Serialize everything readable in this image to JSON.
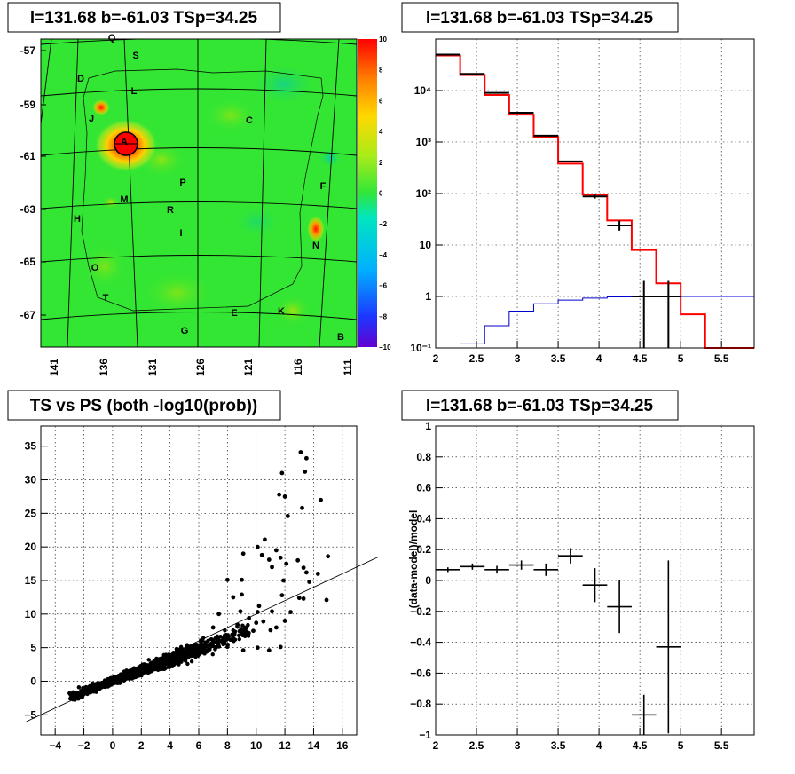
{
  "panels": {
    "skymap_title": "l=131.68 b=-61.03 TSp=34.25",
    "spectrum_title": "l=131.68 b=-61.03 TSp=34.25",
    "scatter_title": "TS vs PS (both -log10(prob))",
    "residual_title": "l=131.68 b=-61.03 TSp=34.25"
  },
  "colors": {
    "map_background": "#33e633",
    "model": "#ff0000",
    "background_model": "#0000cc",
    "data": "#000000",
    "source_marker": "#ff0000"
  },
  "chart_data": [
    {
      "type": "heatmap",
      "title": "l=131.68 b=-61.03 TSp=34.25",
      "xlabel": "",
      "ylabel": "",
      "x_ticks": [
        "141",
        "136",
        "131",
        "126",
        "121",
        "116",
        "111"
      ],
      "y_ticks": [
        "-57",
        "-59",
        "-61",
        "-63",
        "-65",
        "-67"
      ],
      "colorbar": {
        "range": [
          -10,
          10
        ],
        "ticks": [
          "10",
          "8",
          "6",
          "4",
          "2",
          "0",
          "−2",
          "−4",
          "−6",
          "−8",
          "−10"
        ],
        "colormap": "rainbow"
      },
      "source_labels": [
        "Q",
        "S",
        "D",
        "L",
        "J",
        "C",
        "A",
        "P",
        "F",
        "M",
        "H",
        "R",
        "I",
        "N",
        "O",
        "T",
        "E",
        "K",
        "G",
        "B"
      ],
      "hotspots": [
        {
          "name": "A",
          "l": 133.5,
          "b": -61.0,
          "value": 10
        },
        {
          "name": "J",
          "l": 136.0,
          "b": -59.2,
          "value": 8
        },
        {
          "name": "N",
          "l": 114.2,
          "b": -64.2,
          "value": 7
        }
      ]
    },
    {
      "type": "line",
      "title": "l=131.68 b=-61.03 TSp=34.25",
      "xlabel": "",
      "ylabel": "",
      "xlim": [
        2,
        5.9
      ],
      "ylim": [
        0.1,
        100000
      ],
      "log_y": true,
      "x_ticks": [
        "2",
        "2.5",
        "3",
        "3.5",
        "4",
        "4.5",
        "5",
        "5.5"
      ],
      "y_ticks": [
        "10⁻¹",
        "1",
        "10",
        "10²",
        "10³",
        "10⁴"
      ],
      "grid": true,
      "series": [
        {
          "name": "",
          "style": "histogram",
          "color": "#ff0000",
          "edges": [
            2.0,
            2.3,
            2.6,
            2.9,
            3.2,
            3.5,
            3.8,
            4.1,
            4.4,
            4.7,
            5.0,
            5.3,
            5.9
          ],
          "values": [
            48000,
            20000,
            8200,
            3400,
            1250,
            380,
            95,
            30,
            8,
            1.8,
            0.45,
            0.1
          ]
        },
        {
          "name": "",
          "style": "histogram",
          "color": "#0000cc",
          "edges": [
            2.3,
            2.6,
            2.9,
            3.2,
            3.5,
            3.8,
            4.1,
            4.4,
            4.7,
            5.0,
            5.3,
            5.9
          ],
          "values": [
            0.12,
            0.27,
            0.52,
            0.72,
            0.85,
            0.93,
            0.98,
            1.0,
            1.0,
            1.0,
            1.0
          ]
        },
        {
          "name": "",
          "style": "errorbars",
          "color": "#000000",
          "x": [
            2.15,
            2.45,
            2.75,
            3.05,
            3.35,
            3.65,
            3.95,
            4.25,
            4.55,
            4.85
          ],
          "xerr": 0.15,
          "y": [
            50000,
            21000,
            9000,
            3700,
            1330,
            420,
            88,
            24,
            1,
            1
          ],
          "ylo": [
            50000,
            21000,
            9000,
            3700,
            1330,
            420,
            80,
            19,
            0.05,
            0.05
          ],
          "yhi": [
            50000,
            21000,
            9000,
            3700,
            1330,
            420,
            96,
            30,
            2.0,
            2.0
          ]
        }
      ]
    },
    {
      "type": "scatter",
      "title": "TS vs PS (both -log10(prob))",
      "xlabel": "",
      "ylabel": "",
      "xlim": [
        -5,
        17
      ],
      "ylim": [
        -8,
        38
      ],
      "x_ticks": [
        "−4",
        "−2",
        "0",
        "2",
        "4",
        "6",
        "8",
        "10",
        "12",
        "14",
        "16"
      ],
      "y_ticks": [
        "−5",
        "0",
        "5",
        "10",
        "15",
        "20",
        "25",
        "30",
        "35"
      ],
      "grid": true,
      "fit_line": {
        "slope": 1.0,
        "intercept": 0.0
      },
      "outliers": [
        [
          13.1,
          34.1
        ],
        [
          13.5,
          33.2
        ],
        [
          13.4,
          31.2
        ],
        [
          11.8,
          31.0
        ],
        [
          11.6,
          27.8
        ],
        [
          12.0,
          27.5
        ],
        [
          14.5,
          27.0
        ],
        [
          13.2,
          25.8
        ],
        [
          12.2,
          24.6
        ],
        [
          10.6,
          21.1
        ],
        [
          10.1,
          20.0
        ],
        [
          11.4,
          19.5
        ],
        [
          9.1,
          19.0
        ],
        [
          10.4,
          18.8
        ],
        [
          11.7,
          18.4
        ],
        [
          12.9,
          18.0
        ],
        [
          15.0,
          18.6
        ],
        [
          10.9,
          18.1
        ],
        [
          11.1,
          17.0
        ],
        [
          13.5,
          16.2
        ],
        [
          13.3,
          16.9
        ],
        [
          12.1,
          17.5
        ],
        [
          14.3,
          16.0
        ],
        [
          13.7,
          14.8
        ],
        [
          14.9,
          12.1
        ],
        [
          8.0,
          15.1
        ],
        [
          9.0,
          15.1
        ],
        [
          11.9,
          15.0
        ],
        [
          13.0,
          12.4
        ],
        [
          11.8,
          12.8
        ],
        [
          13.3,
          12.3
        ],
        [
          12.4,
          10.3
        ],
        [
          11.1,
          10.4
        ],
        [
          10.1,
          10.3
        ],
        [
          9.5,
          9.4
        ],
        [
          10.5,
          8.9
        ],
        [
          11.4,
          8.0
        ],
        [
          12.0,
          9.0
        ],
        [
          8.4,
          12.5
        ],
        [
          10.2,
          11.2
        ],
        [
          7.4,
          10.0
        ],
        [
          8.9,
          10.4
        ],
        [
          9.0,
          12.9
        ],
        [
          10.0,
          8.7
        ],
        [
          8.7,
          8.4
        ],
        [
          7.0,
          8.0
        ],
        [
          9.8,
          7.5
        ],
        [
          10.9,
          4.6
        ],
        [
          10.1,
          5.0
        ],
        [
          11.7,
          5.1
        ],
        [
          9.1,
          4.6
        ],
        [
          11.0,
          7.6
        ]
      ],
      "cloud": {
        "x_range": [
          -3.0,
          9.5
        ],
        "count": 2600
      }
    },
    {
      "type": "line",
      "title": "l=131.68 b=-61.03 TSp=34.25",
      "xlabel": "",
      "ylabel": "(data-model)/model",
      "xlim": [
        2,
        5.9
      ],
      "ylim": [
        -1,
        1
      ],
      "x_ticks": [
        "2",
        "2.5",
        "3",
        "3.5",
        "4",
        "4.5",
        "5",
        "5.5"
      ],
      "y_ticks": [
        "−1",
        "−0.8",
        "−0.6",
        "−0.4",
        "−0.2",
        "0",
        "0.2",
        "0.4",
        "0.6",
        "0.8",
        "1"
      ],
      "grid": true,
      "series": [
        {
          "name": "",
          "style": "errorbars",
          "color": "#000000",
          "x": [
            2.15,
            2.45,
            2.75,
            3.05,
            3.35,
            3.65,
            3.95,
            4.25,
            4.55,
            4.85
          ],
          "xerr": 0.15,
          "y": [
            0.07,
            0.09,
            0.07,
            0.1,
            0.07,
            0.16,
            -0.03,
            -0.17,
            -0.87,
            -0.43
          ],
          "yerr": [
            0.015,
            0.02,
            0.025,
            0.03,
            0.04,
            0.05,
            0.11,
            0.17,
            0.13,
            0.56
          ]
        }
      ]
    }
  ]
}
